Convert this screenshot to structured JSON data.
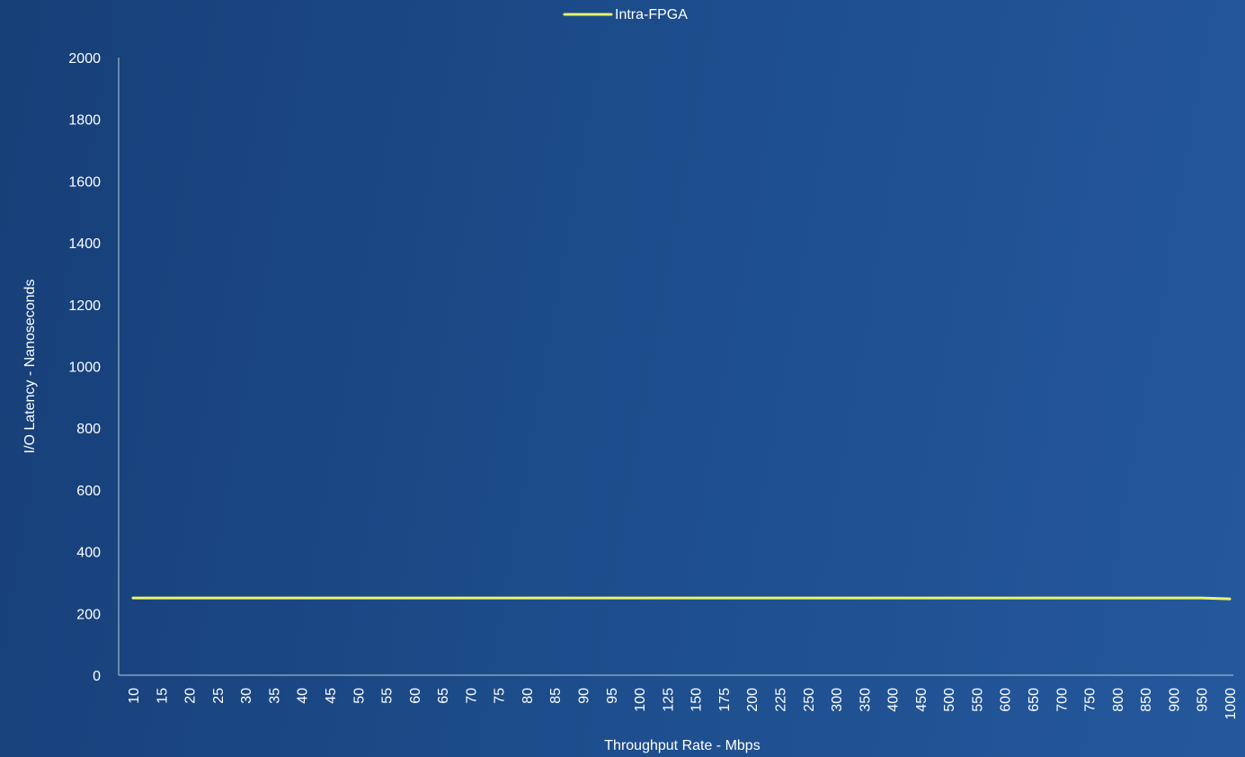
{
  "chart_data": {
    "type": "line",
    "xlabel": "Throughput Rate - Mbps",
    "ylabel": "I/O Latency - Nanoseconds",
    "ylim": [
      0,
      2000
    ],
    "yticks": [
      0,
      200,
      400,
      600,
      800,
      1000,
      1200,
      1400,
      1600,
      1800,
      2000
    ],
    "categories": [
      "10",
      "15",
      "20",
      "25",
      "30",
      "35",
      "40",
      "45",
      "50",
      "55",
      "60",
      "65",
      "70",
      "75",
      "80",
      "85",
      "90",
      "95",
      "100",
      "125",
      "150",
      "175",
      "200",
      "225",
      "250",
      "300",
      "350",
      "400",
      "450",
      "500",
      "550",
      "600",
      "650",
      "700",
      "750",
      "800",
      "850",
      "900",
      "950",
      "1000"
    ],
    "series": [
      {
        "name": "Intra-FPGA",
        "color": "#e9f56b",
        "values": [
          250,
          250,
          250,
          250,
          250,
          250,
          250,
          250,
          250,
          250,
          250,
          250,
          250,
          250,
          250,
          250,
          250,
          250,
          250,
          250,
          250,
          250,
          250,
          250,
          250,
          250,
          250,
          250,
          250,
          250,
          250,
          250,
          250,
          250,
          250,
          250,
          250,
          250,
          250,
          247
        ]
      }
    ],
    "legend_position": "top-center",
    "grid": false
  }
}
